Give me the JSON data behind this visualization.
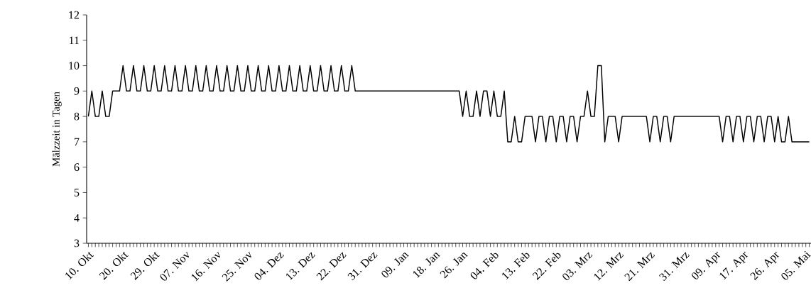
{
  "chart_data": {
    "type": "line",
    "ylabel": "Mälzzeit in Tagen",
    "color": "#000000",
    "line_style": "solid",
    "categories": [
      "10. Okt",
      null,
      null,
      null,
      null,
      null,
      null,
      null,
      null,
      null,
      "20. Okt",
      null,
      null,
      null,
      null,
      null,
      null,
      null,
      null,
      "29. Okt",
      null,
      null,
      null,
      null,
      null,
      null,
      null,
      null,
      "07. Nov",
      null,
      null,
      null,
      null,
      null,
      null,
      null,
      null,
      "16. Nov",
      null,
      null,
      null,
      null,
      null,
      null,
      null,
      null,
      "25. Nov",
      null,
      null,
      null,
      null,
      null,
      null,
      null,
      null,
      "04. Dez",
      null,
      null,
      null,
      null,
      null,
      null,
      null,
      null,
      "13. Dez",
      null,
      null,
      null,
      null,
      null,
      null,
      null,
      null,
      "22. Dez",
      null,
      null,
      null,
      null,
      null,
      null,
      null,
      null,
      "31. Dez",
      null,
      null,
      null,
      null,
      null,
      null,
      null,
      null,
      "09. Jan",
      null,
      null,
      null,
      null,
      null,
      null,
      null,
      null,
      "18. Jan",
      null,
      null,
      null,
      null,
      null,
      null,
      null,
      "26. Jan",
      null,
      null,
      null,
      null,
      null,
      null,
      null,
      null,
      "04. Feb",
      null,
      null,
      null,
      null,
      null,
      null,
      null,
      null,
      "13. Feb",
      null,
      null,
      null,
      null,
      null,
      null,
      null,
      null,
      "22. Feb",
      null,
      null,
      null,
      null,
      null,
      null,
      null,
      null,
      "03. Mrz",
      null,
      null,
      null,
      null,
      null,
      null,
      null,
      null,
      "12. Mrz",
      null,
      null,
      null,
      null,
      null,
      null,
      null,
      null,
      "21. Mrz",
      null,
      null,
      null,
      null,
      null,
      null,
      null,
      null,
      null,
      "31. Mrz",
      null,
      null,
      null,
      null,
      null,
      null,
      null,
      null,
      "09. Apr",
      null,
      null,
      null,
      null,
      null,
      null,
      null,
      "17. Apr",
      null,
      null,
      null,
      null,
      null,
      null,
      null,
      null,
      "26. Apr",
      null,
      null,
      null,
      null,
      null,
      null,
      null,
      null,
      "05. Mai",
      null
    ],
    "values": [
      8,
      9,
      8,
      8,
      9,
      8,
      8,
      9,
      9,
      9,
      10,
      9,
      9,
      10,
      9,
      9,
      10,
      9,
      9,
      10,
      9,
      9,
      10,
      9,
      9,
      10,
      9,
      9,
      10,
      9,
      9,
      10,
      9,
      9,
      10,
      9,
      9,
      10,
      9,
      9,
      10,
      9,
      9,
      10,
      9,
      9,
      10,
      9,
      9,
      10,
      9,
      9,
      10,
      9,
      9,
      10,
      9,
      9,
      10,
      9,
      9,
      10,
      9,
      9,
      10,
      9,
      9,
      10,
      9,
      9,
      10,
      9,
      9,
      10,
      9,
      9,
      10,
      9,
      9,
      9,
      9,
      9,
      9,
      9,
      9,
      9,
      9,
      9,
      9,
      9,
      9,
      9,
      9,
      9,
      9,
      9,
      9,
      9,
      9,
      9,
      9,
      9,
      9,
      9,
      9,
      9,
      9,
      9,
      8,
      9,
      8,
      8,
      9,
      8,
      9,
      9,
      8,
      9,
      8,
      8,
      9,
      7,
      7,
      8,
      7,
      7,
      8,
      8,
      8,
      7,
      8,
      8,
      7,
      8,
      8,
      7,
      8,
      8,
      7,
      8,
      8,
      7,
      8,
      8,
      9,
      8,
      8,
      10,
      10,
      7,
      8,
      8,
      8,
      7,
      8,
      8,
      8,
      8,
      8,
      8,
      8,
      8,
      7,
      8,
      8,
      7,
      8,
      8,
      7,
      8,
      8,
      8,
      8,
      8,
      8,
      8,
      8,
      8,
      8,
      8,
      8,
      8,
      8,
      7,
      8,
      8,
      7,
      8,
      8,
      7,
      8,
      8,
      7,
      8,
      8,
      7,
      8,
      8,
      7,
      8,
      7,
      7,
      8,
      7,
      7,
      7,
      7,
      7,
      7
    ],
    "ylim": [
      3,
      12
    ],
    "yticks": [
      3,
      4,
      5,
      6,
      7,
      8,
      9,
      10,
      11,
      12
    ]
  }
}
